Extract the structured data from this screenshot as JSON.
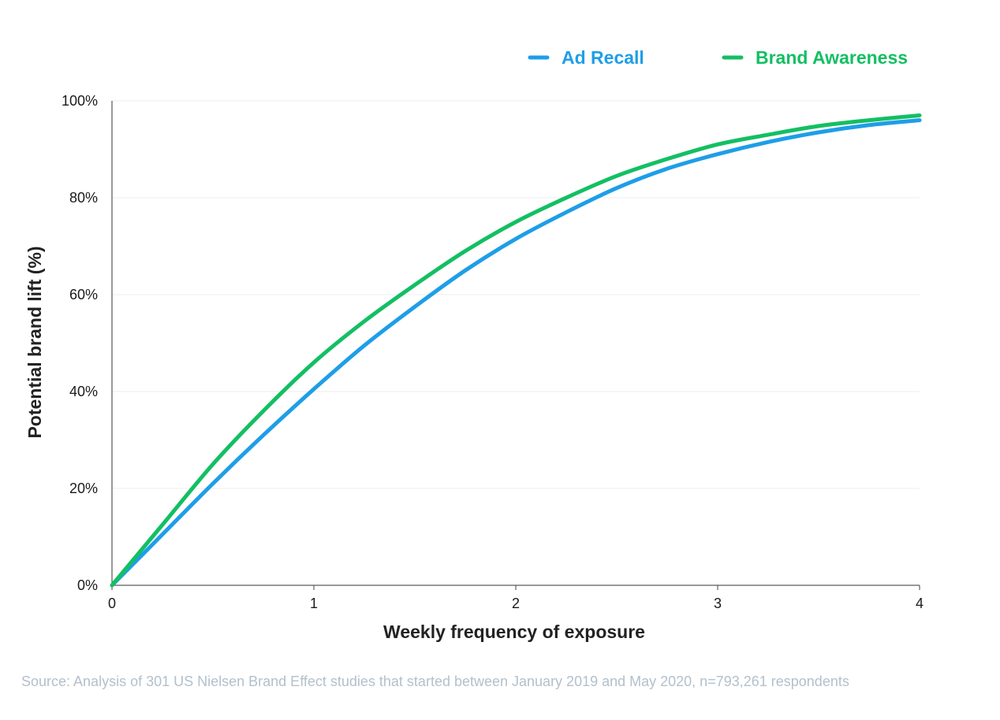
{
  "chart_data": {
    "type": "line",
    "title": "",
    "xlabel": "Weekly frequency of exposure",
    "ylabel": "Potential brand lift (%)",
    "xlim": [
      0,
      4
    ],
    "ylim": [
      0,
      100
    ],
    "x_ticks": [
      "0",
      "1",
      "2",
      "3",
      "4"
    ],
    "y_ticks": [
      "0%",
      "20%",
      "40%",
      "60%",
      "80%",
      "100%"
    ],
    "grid": "horizontal",
    "legend_position": "top-right",
    "series": [
      {
        "name": "Ad Recall",
        "color": "#1e9ee8",
        "x": [
          0,
          0.25,
          0.5,
          0.75,
          1,
          1.25,
          1.5,
          1.75,
          2,
          2.25,
          2.5,
          2.75,
          3,
          3.25,
          3.5,
          3.75,
          4
        ],
        "values": [
          0,
          10.5,
          21,
          31,
          40.5,
          49.5,
          57.5,
          65,
          71.5,
          77,
          82,
          86,
          89,
          91.5,
          93.5,
          95,
          96
        ]
      },
      {
        "name": "Brand Awareness",
        "color": "#13bf63",
        "x": [
          0,
          0.25,
          0.5,
          0.75,
          1,
          1.25,
          1.5,
          1.75,
          2,
          2.25,
          2.5,
          2.75,
          3,
          3.25,
          3.5,
          3.75,
          4
        ],
        "values": [
          0,
          12.5,
          25,
          36,
          46,
          54.5,
          62,
          69,
          75,
          80,
          84.5,
          88,
          91,
          93,
          94.8,
          96,
          97
        ]
      }
    ],
    "source": "Source: Analysis of 301 US Nielsen Brand Effect studies that started between January 2019 and May 2020, n=793,261 respondents"
  }
}
